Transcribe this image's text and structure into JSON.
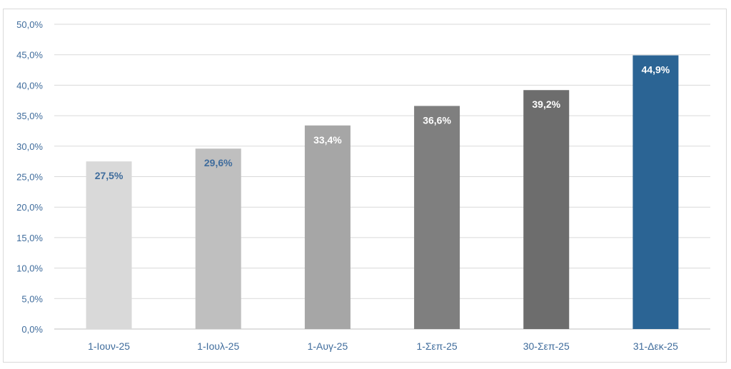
{
  "chart_data": {
    "type": "bar",
    "categories": [
      "1-Ιουν-25",
      "1-Ιουλ-25",
      "1-Αυγ-25",
      "1-Σεπ-25",
      "30-Σεπ-25",
      "31-Δεκ-25"
    ],
    "values": [
      27.5,
      29.6,
      33.4,
      36.6,
      39.2,
      44.9
    ],
    "data_labels": [
      "27,5%",
      "29,6%",
      "33,4%",
      "36,6%",
      "39,2%",
      "44,9%"
    ],
    "bar_colors": [
      "#d9d9d9",
      "#bfbfbf",
      "#a6a6a6",
      "#7f7f7f",
      "#6d6d6d",
      "#2b6494"
    ],
    "label_colors": [
      "#3f6c9c",
      "#3f6c9c",
      "#ffffff",
      "#ffffff",
      "#ffffff",
      "#ffffff"
    ],
    "ylim": [
      0,
      50
    ],
    "y_ticks": [
      "0,0%",
      "5,0%",
      "10,0%",
      "15,0%",
      "20,0%",
      "25,0%",
      "30,0%",
      "35,0%",
      "40,0%",
      "45,0%",
      "50,0%"
    ],
    "title": "",
    "xlabel": "",
    "ylabel": "",
    "grid": true,
    "legend": false,
    "colors": {
      "axis_text": "#3f6c9c",
      "grid": "#d9d9d9"
    }
  }
}
